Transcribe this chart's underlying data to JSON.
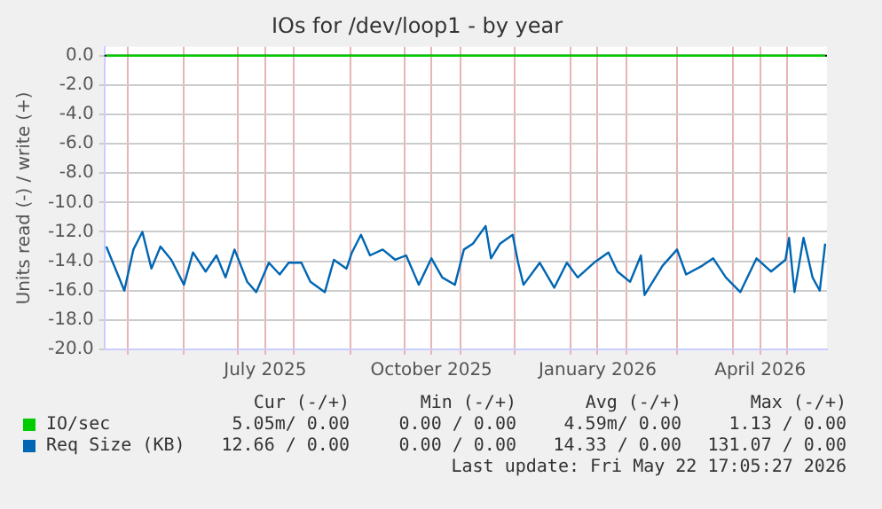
{
  "chart_data": {
    "type": "line",
    "title": "IOs for /dev/loop1 - by year",
    "ylabel": "Units read (-) / write (+)",
    "xlim": [
      "2025-04-18",
      "2026-05-23"
    ],
    "ylim": [
      -20,
      0.6
    ],
    "xticks": [
      {
        "value": "2025-05-01",
        "label": null
      },
      {
        "value": "2025-06-01",
        "label": null
      },
      {
        "value": "2025-07-01",
        "label": null
      },
      {
        "value": "2025-07-16",
        "label": "July 2025"
      },
      {
        "value": "2025-08-01",
        "label": null
      },
      {
        "value": "2025-09-01",
        "label": null
      },
      {
        "value": "2025-10-01",
        "label": null
      },
      {
        "value": "2025-10-16",
        "label": "October 2025"
      },
      {
        "value": "2025-11-01",
        "label": null
      },
      {
        "value": "2025-12-01",
        "label": null
      },
      {
        "value": "2026-01-01",
        "label": null
      },
      {
        "value": "2026-01-16",
        "label": "January 2026"
      },
      {
        "value": "2026-02-01",
        "label": null
      },
      {
        "value": "2026-03-01",
        "label": null
      },
      {
        "value": "2026-04-01",
        "label": null
      },
      {
        "value": "2026-04-16",
        "label": "April 2026"
      },
      {
        "value": "2026-05-01",
        "label": null
      }
    ],
    "yticks": [
      {
        "value": 0,
        "label": "0.0"
      },
      {
        "value": -2,
        "label": "-2.0"
      },
      {
        "value": -4,
        "label": "-4.0"
      },
      {
        "value": -6,
        "label": "-6.0"
      },
      {
        "value": -8,
        "label": "-8.0"
      },
      {
        "value": -10,
        "label": "-10.0"
      },
      {
        "value": -12,
        "label": "-12.0"
      },
      {
        "value": -14,
        "label": "-14.0"
      },
      {
        "value": -16,
        "label": "-16.0"
      },
      {
        "value": -18,
        "label": "-18.0"
      },
      {
        "value": -20,
        "label": "-20.0"
      }
    ],
    "grid": true,
    "legend": "bottom",
    "marker": "none",
    "line_style": "solid",
    "ref_lines": [
      {
        "axis": "y",
        "value": 0,
        "color": "#000000"
      }
    ],
    "series": [
      {
        "name": "IO/sec",
        "color": "#00cc00",
        "x": [
          "2025-04-19",
          "2026-05-22"
        ],
        "values": [
          0,
          0
        ]
      },
      {
        "name": "Req Size (KB)",
        "color": "#0066b3",
        "x": [
          "2025-04-19",
          "2025-04-29",
          "2025-05-04",
          "2025-05-09",
          "2025-05-14",
          "2025-05-19",
          "2025-05-25",
          "2025-06-01",
          "2025-06-06",
          "2025-06-13",
          "2025-06-19",
          "2025-06-24",
          "2025-06-29",
          "2025-07-06",
          "2025-07-11",
          "2025-07-18",
          "2025-07-24",
          "2025-07-29",
          "2025-08-05",
          "2025-08-10",
          "2025-08-18",
          "2025-08-23",
          "2025-08-30",
          "2025-09-02",
          "2025-09-07",
          "2025-09-12",
          "2025-09-19",
          "2025-09-26",
          "2025-10-02",
          "2025-10-09",
          "2025-10-16",
          "2025-10-22",
          "2025-10-29",
          "2025-11-03",
          "2025-11-08",
          "2025-11-15",
          "2025-11-18",
          "2025-11-23",
          "2025-11-30",
          "2025-12-03",
          "2025-12-06",
          "2025-12-15",
          "2025-12-23",
          "2025-12-30",
          "2026-01-05",
          "2026-01-14",
          "2026-01-22",
          "2026-01-27",
          "2026-02-03",
          "2026-02-09",
          "2026-02-11",
          "2026-02-21",
          "2026-03-01",
          "2026-03-06",
          "2026-03-15",
          "2026-03-21",
          "2026-03-28",
          "2026-04-05",
          "2026-04-14",
          "2026-04-22",
          "2026-04-30",
          "2026-05-02",
          "2026-05-05",
          "2026-05-10",
          "2026-05-15",
          "2026-05-19",
          "2026-05-22"
        ],
        "values": [
          -13.0,
          -16.0,
          -13.2,
          -12.0,
          -14.5,
          -13.0,
          -13.9,
          -15.6,
          -13.4,
          -14.7,
          -13.6,
          -15.1,
          -13.2,
          -15.4,
          -16.1,
          -14.1,
          -14.9,
          -14.1,
          -14.1,
          -15.4,
          -16.1,
          -13.9,
          -14.5,
          -13.4,
          -12.2,
          -13.6,
          -13.2,
          -13.9,
          -13.6,
          -15.6,
          -13.8,
          -15.1,
          -15.6,
          -13.2,
          -12.8,
          -11.6,
          -13.8,
          -12.8,
          -12.2,
          -14.1,
          -15.6,
          -14.1,
          -15.8,
          -14.1,
          -15.1,
          -14.1,
          -13.4,
          -14.7,
          -15.4,
          -13.6,
          -16.3,
          -14.3,
          -13.2,
          -14.9,
          -14.3,
          -13.8,
          -15.1,
          -16.1,
          -13.8,
          -14.7,
          -13.9,
          -12.4,
          -16.1,
          -12.4,
          -15.1,
          -16.0,
          -12.8
        ]
      }
    ],
    "annotations": [
      "Cur (-/+)",
      "Min (-/+)",
      "Avg (-/+)",
      "Max (-/+)",
      "5.05m/ 0.00",
      "0.00 / 0.00",
      "4.59m/ 0.00",
      "1.13 / 0.00",
      "12.66 / 0.00",
      "0.00 / 0.00",
      "14.33 / 0.00",
      "131.07 / 0.00",
      "Last update: Fri May 22 17:05:27 2026"
    ]
  }
}
